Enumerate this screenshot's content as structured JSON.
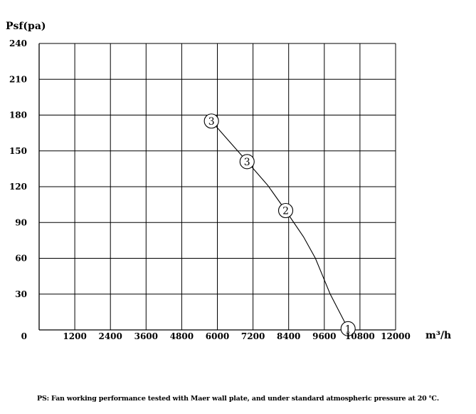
{
  "chart_data": {
    "type": "line",
    "ylabel": "Psf(pa)",
    "xlabel": "m³/h",
    "xlim": [
      0,
      12000
    ],
    "ylim": [
      0,
      240
    ],
    "xticks": [
      1200,
      2400,
      3600,
      4800,
      6000,
      7200,
      8400,
      9600,
      10800,
      12000
    ],
    "yticks": [
      0,
      30,
      60,
      90,
      120,
      150,
      180,
      210,
      240
    ],
    "grid": true,
    "series": [
      {
        "x": [
          5800,
          6400,
          7000,
          7700,
          8300,
          8900,
          9300,
          9800,
          10400
        ],
        "y": [
          175,
          158,
          141,
          121,
          100,
          78,
          60,
          30,
          1
        ]
      }
    ],
    "markers": [
      {
        "label": "3",
        "x": 5800,
        "y": 175
      },
      {
        "label": "3",
        "x": 7000,
        "y": 141
      },
      {
        "label": "2",
        "x": 8300,
        "y": 100
      },
      {
        "label": "1",
        "x": 10400,
        "y": 1
      }
    ],
    "line_color": "#000000"
  },
  "footnote": "PS: Fan working performance tested with Maer wall plate, and under standard atmospheric pressure at 20 ℃."
}
